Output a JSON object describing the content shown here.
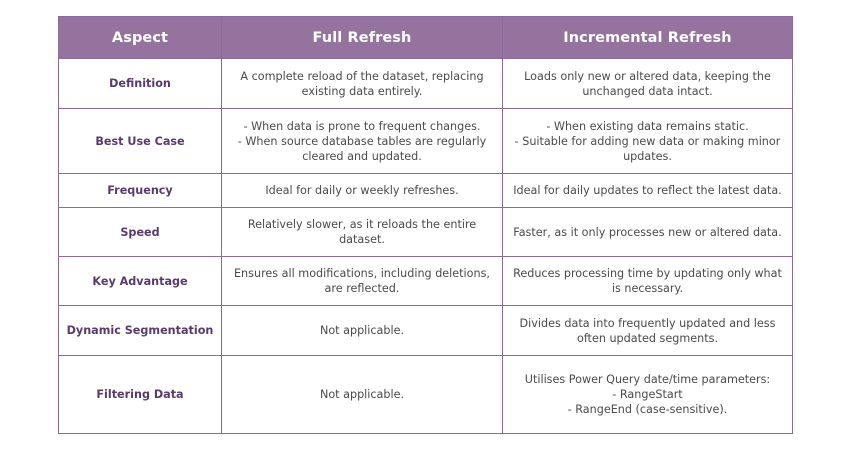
{
  "table": {
    "headers": [
      "Aspect",
      "Full Refresh",
      "Incremental Refresh"
    ],
    "rows": [
      {
        "aspect": "Definition",
        "full": [
          "A complete reload of the dataset, replacing",
          "existing data entirely."
        ],
        "incremental": [
          "Loads only new or altered data, keeping the",
          "unchanged data intact."
        ]
      },
      {
        "aspect": "Best Use Case",
        "full": [
          "- When data is prone to frequent changes.",
          "- When source database tables are regularly",
          "cleared and updated."
        ],
        "incremental": [
          "- When existing data remains static.",
          "- Suitable for adding new data or making minor",
          "updates."
        ]
      },
      {
        "aspect": "Frequency",
        "full": [
          "Ideal for daily or weekly refreshes."
        ],
        "incremental": [
          "Ideal for daily updates to reflect the latest data."
        ]
      },
      {
        "aspect": "Speed",
        "full": [
          "Relatively slower, as it reloads the entire",
          "dataset."
        ],
        "incremental": [
          "Faster, as it only processes new or altered data."
        ]
      },
      {
        "aspect": "Key Advantage",
        "full": [
          "Ensures all modifications, including deletions,",
          "are reflected."
        ],
        "incremental": [
          "Reduces processing time by updating only what",
          "is necessary."
        ]
      },
      {
        "aspect": "Dynamic Segmentation",
        "full": [
          "Not applicable."
        ],
        "incremental": [
          "Divides data into frequently updated and less",
          "often updated segments."
        ]
      },
      {
        "aspect": "Filtering Data",
        "full": [
          "Not applicable."
        ],
        "incremental": [
          "Utilises Power Query date/time parameters:",
          "- RangeStart",
          "- RangeEnd (case-sensitive)."
        ]
      }
    ]
  },
  "colors": {
    "header_bg": "#94739f",
    "header_text": "#ffffff",
    "aspect_text": "#5a3a6e",
    "body_text": "#4a4a4a",
    "border": "#8c6a9b"
  }
}
